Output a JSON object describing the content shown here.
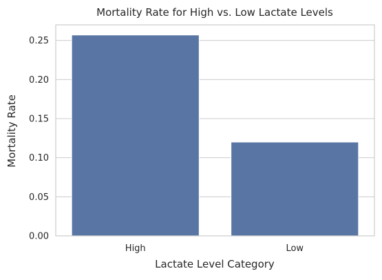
{
  "chart_data": {
    "type": "bar",
    "title": "Mortality Rate for High vs. Low Lactate Levels",
    "xlabel": "Lactate Level Category",
    "ylabel": "Mortality Rate",
    "categories": [
      "High",
      "Low"
    ],
    "values": [
      0.257,
      0.12
    ],
    "ylim": [
      0,
      0.27
    ],
    "yticks": [
      "0.00",
      "0.05",
      "0.10",
      "0.15",
      "0.20",
      "0.25"
    ],
    "grid": "horizontal",
    "colors": {
      "bar": "#5875a4",
      "grid": "#cccccc",
      "spine": "#cccccc"
    }
  }
}
